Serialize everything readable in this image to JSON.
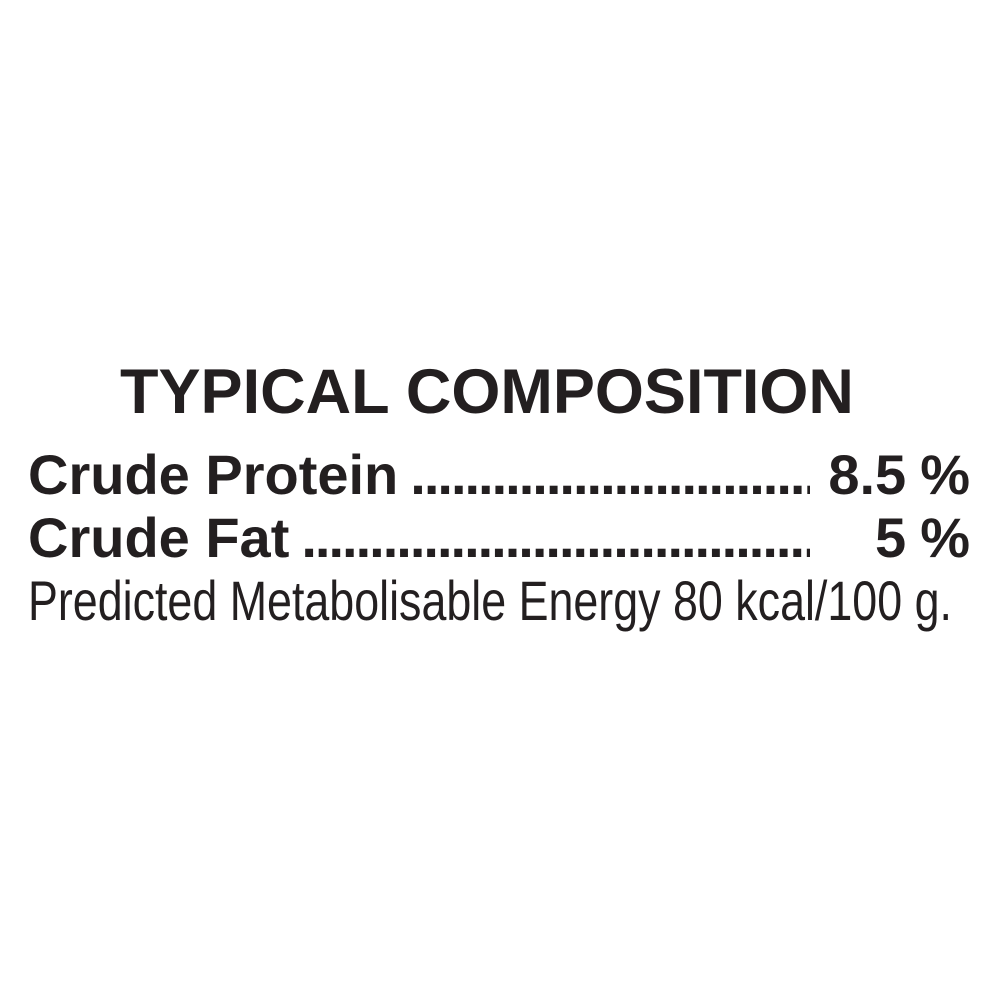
{
  "label_panel": {
    "title": "TYPICAL COMPOSITION",
    "rows": [
      {
        "label": "Crude Protein",
        "value": "8.5",
        "unit": "%"
      },
      {
        "label": "Crude Fat",
        "value": "5",
        "unit": "%"
      }
    ],
    "dot_leader": "..............................................................",
    "energy_note": "Predicted Metabolisable Energy 80 kcal/100 g.",
    "colors": {
      "text": "#231f20",
      "background": "#ffffff"
    }
  }
}
